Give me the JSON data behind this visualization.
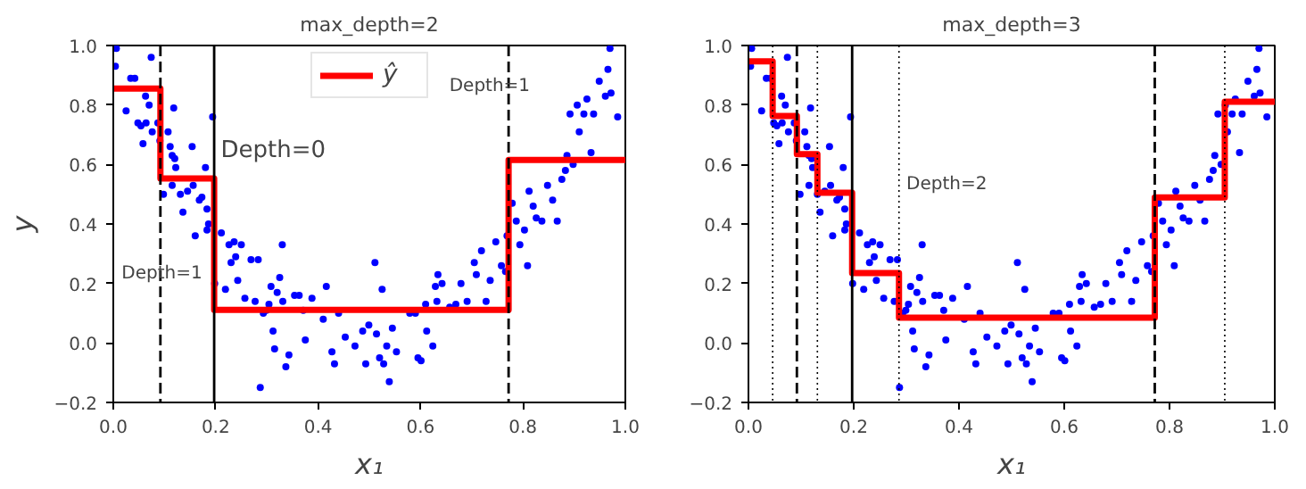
{
  "chart_data": [
    {
      "type": "scatter",
      "title": "max_depth=2",
      "xlabel": "x₁",
      "ylabel": "y",
      "xlim": [
        0,
        1
      ],
      "ylim": [
        -0.2,
        1.0
      ],
      "xticks": [
        {
          "value": 0,
          "label": "0.0"
        },
        {
          "value": 0.2,
          "label": "0.2"
        },
        {
          "value": 0.4,
          "label": "0.4"
        },
        {
          "value": 0.6,
          "label": "0.6"
        },
        {
          "value": 0.8,
          "label": "0.8"
        },
        {
          "value": 1,
          "label": "1.0"
        }
      ],
      "yticks": [
        {
          "value": -0.2,
          "label": "−0.2"
        },
        {
          "value": 0,
          "label": "0.0"
        },
        {
          "value": 0.2,
          "label": "0.2"
        },
        {
          "value": 0.4,
          "label": "0.4"
        },
        {
          "value": 0.6,
          "label": "0.6"
        },
        {
          "value": 0.8,
          "label": "0.8"
        },
        {
          "value": 1,
          "label": "1.0"
        }
      ],
      "grid": false,
      "legend": "top",
      "series": [
        {
          "marker": "circle",
          "color": "#0000ff",
          "x": [
            0.006,
            0.004,
            0.025,
            0.034,
            0.042,
            0.048,
            0.058,
            0.054,
            0.064,
            0.063,
            0.07,
            0.074,
            0.076,
            0.087,
            0.091,
            0.098,
            0.107,
            0.111,
            0.118,
            0.115,
            0.12,
            0.122,
            0.115,
            0.131,
            0.136,
            0.145,
            0.154,
            0.16,
            0.156,
            0.168,
            0.173,
            0.18,
            0.183,
            0.183,
            0.186,
            0.194,
            0.198,
            0.211,
            0.219,
            0.226,
            0.23,
            0.236,
            0.239,
            0.25,
            0.243,
            0.257,
            0.269,
            0.277,
            0.283,
            0.287,
            0.293,
            0.299,
            0.304,
            0.308,
            0.312,
            0.315,
            0.32,
            0.325,
            0.33,
            0.331,
            0.337,
            0.343,
            0.354,
            0.363,
            0.371,
            0.375,
            0.388,
            0.41,
            0.416,
            0.427,
            0.432,
            0.44,
            0.453,
            0.472,
            0.487,
            0.493,
            0.499,
            0.511,
            0.514,
            0.52,
            0.525,
            0.528,
            0.534,
            0.539,
            0.545,
            0.553,
            0.579,
            0.59,
            0.595,
            0.601,
            0.61,
            0.612,
            0.624,
            0.629,
            0.632,
            0.634,
            0.642,
            0.657,
            0.669,
            0.679,
            0.691,
            0.705,
            0.709,
            0.719,
            0.728,
            0.736,
            0.747,
            0.758,
            0.766,
            0.769,
            0.779,
            0.787,
            0.794,
            0.803,
            0.809,
            0.812,
            0.82,
            0.826,
            0.837,
            0.848,
            0.858,
            0.867,
            0.876,
            0.883,
            0.886,
            0.892,
            0.898,
            0.906,
            0.91,
            0.919,
            0.925,
            0.933,
            0.938,
            0.949,
            0.961,
            0.966,
            0.97,
            0.972,
            0.985
          ],
          "values": [
            0.99,
            0.93,
            0.78,
            0.89,
            0.89,
            0.74,
            0.67,
            0.73,
            0.74,
            0.83,
            0.8,
            0.96,
            0.71,
            0.74,
            0.68,
            0.5,
            0.71,
            0.66,
            0.79,
            0.63,
            0.62,
            0.59,
            0.53,
            0.5,
            0.44,
            0.51,
            0.66,
            0.36,
            0.53,
            0.48,
            0.49,
            0.59,
            0.45,
            0.38,
            0.4,
            0.76,
            0.2,
            0.37,
            0.18,
            0.33,
            0.27,
            0.34,
            0.29,
            0.33,
            0.21,
            0.15,
            0.28,
            0.14,
            0.28,
            -0.15,
            0.1,
            0.11,
            0.13,
            0.19,
            0.04,
            -0.02,
            0.17,
            0.22,
            0.33,
            0.14,
            -0.08,
            -0.04,
            0.16,
            0.16,
            0.11,
            0.01,
            0.15,
            0.08,
            0.19,
            -0.03,
            -0.07,
            0.1,
            0.02,
            -0.01,
            0.04,
            -0.07,
            0.06,
            0.27,
            0.03,
            -0.05,
            0.18,
            -0.07,
            -0.01,
            -0.13,
            0.05,
            -0.03,
            0.1,
            0.1,
            -0.05,
            -0.06,
            0.13,
            0.04,
            -0.01,
            0.19,
            0.14,
            0.23,
            0.2,
            0.12,
            0.13,
            0.2,
            0.14,
            0.27,
            0.23,
            0.31,
            0.14,
            0.21,
            0.34,
            0.26,
            0.24,
            0.36,
            0.47,
            0.41,
            0.33,
            0.38,
            0.26,
            0.51,
            0.46,
            0.42,
            0.41,
            0.53,
            0.48,
            0.41,
            0.55,
            0.58,
            0.63,
            0.77,
            0.6,
            0.8,
            0.71,
            0.77,
            0.82,
            0.64,
            0.77,
            0.88,
            0.83,
            0.92,
            0.99,
            0.84,
            0.76
          ]
        },
        {
          "type": "line",
          "name": "ŷ",
          "color": "#ff0000",
          "x": [
            0,
            0.092,
            0.092,
            0.197,
            0.197,
            0.772,
            0.772,
            1
          ],
          "values": [
            0.855,
            0.855,
            0.553,
            0.553,
            0.111,
            0.111,
            0.615,
            0.615
          ]
        }
      ],
      "ref_lines": [
        {
          "axis": "x",
          "value": 0.197,
          "line_style": "solid",
          "color": "#000000"
        },
        {
          "axis": "x",
          "value": 0.092,
          "line_style": "dashed",
          "color": "#000000"
        },
        {
          "axis": "x",
          "value": 0.772,
          "line_style": "dashed",
          "color": "#000000"
        }
      ],
      "annotations": [
        "Depth=0",
        "Depth=1",
        "Depth=1"
      ]
    },
    {
      "type": "scatter",
      "title": "max_depth=3",
      "xlabel": "x₁",
      "xlim": [
        0,
        1
      ],
      "ylim": [
        -0.2,
        1.0
      ],
      "xticks": [
        {
          "value": 0,
          "label": "0.0"
        },
        {
          "value": 0.2,
          "label": "0.2"
        },
        {
          "value": 0.4,
          "label": "0.4"
        },
        {
          "value": 0.6,
          "label": "0.6"
        },
        {
          "value": 0.8,
          "label": "0.8"
        },
        {
          "value": 1,
          "label": "1.0"
        }
      ],
      "yticks": [
        {
          "value": -0.2,
          "label": "−0.2"
        },
        {
          "value": 0,
          "label": "0.0"
        },
        {
          "value": 0.2,
          "label": "0.2"
        },
        {
          "value": 0.4,
          "label": "0.4"
        },
        {
          "value": 0.6,
          "label": "0.6"
        },
        {
          "value": 0.8,
          "label": "0.8"
        },
        {
          "value": 1,
          "label": "1.0"
        }
      ],
      "grid": false,
      "series": [
        {
          "marker": "circle",
          "color": "#0000ff",
          "x": [
            0.006,
            0.004,
            0.025,
            0.034,
            0.042,
            0.048,
            0.058,
            0.054,
            0.064,
            0.063,
            0.07,
            0.074,
            0.076,
            0.087,
            0.091,
            0.098,
            0.107,
            0.111,
            0.118,
            0.115,
            0.12,
            0.122,
            0.115,
            0.131,
            0.136,
            0.145,
            0.154,
            0.16,
            0.156,
            0.168,
            0.173,
            0.18,
            0.183,
            0.183,
            0.186,
            0.194,
            0.198,
            0.211,
            0.219,
            0.226,
            0.23,
            0.236,
            0.239,
            0.25,
            0.243,
            0.257,
            0.269,
            0.277,
            0.283,
            0.287,
            0.293,
            0.299,
            0.304,
            0.308,
            0.312,
            0.315,
            0.32,
            0.325,
            0.33,
            0.331,
            0.337,
            0.343,
            0.354,
            0.363,
            0.371,
            0.375,
            0.388,
            0.41,
            0.416,
            0.427,
            0.432,
            0.44,
            0.453,
            0.472,
            0.487,
            0.493,
            0.499,
            0.511,
            0.514,
            0.52,
            0.525,
            0.528,
            0.534,
            0.539,
            0.545,
            0.553,
            0.579,
            0.59,
            0.595,
            0.601,
            0.61,
            0.612,
            0.624,
            0.629,
            0.632,
            0.634,
            0.642,
            0.657,
            0.669,
            0.679,
            0.691,
            0.705,
            0.709,
            0.719,
            0.728,
            0.736,
            0.747,
            0.758,
            0.766,
            0.769,
            0.779,
            0.787,
            0.794,
            0.803,
            0.809,
            0.812,
            0.82,
            0.826,
            0.837,
            0.848,
            0.858,
            0.867,
            0.876,
            0.883,
            0.886,
            0.892,
            0.898,
            0.906,
            0.91,
            0.919,
            0.925,
            0.933,
            0.938,
            0.949,
            0.961,
            0.966,
            0.97,
            0.972,
            0.985
          ],
          "values": [
            0.99,
            0.93,
            0.78,
            0.89,
            0.89,
            0.74,
            0.67,
            0.73,
            0.74,
            0.83,
            0.8,
            0.96,
            0.71,
            0.74,
            0.68,
            0.5,
            0.71,
            0.66,
            0.79,
            0.63,
            0.62,
            0.59,
            0.53,
            0.5,
            0.44,
            0.51,
            0.66,
            0.36,
            0.53,
            0.48,
            0.49,
            0.59,
            0.45,
            0.38,
            0.4,
            0.76,
            0.2,
            0.37,
            0.18,
            0.33,
            0.27,
            0.34,
            0.29,
            0.33,
            0.21,
            0.15,
            0.28,
            0.14,
            0.28,
            -0.15,
            0.1,
            0.11,
            0.13,
            0.19,
            0.04,
            -0.02,
            0.17,
            0.22,
            0.33,
            0.14,
            -0.08,
            -0.04,
            0.16,
            0.16,
            0.11,
            0.01,
            0.15,
            0.08,
            0.19,
            -0.03,
            -0.07,
            0.1,
            0.02,
            -0.01,
            0.04,
            -0.07,
            0.06,
            0.27,
            0.03,
            -0.05,
            0.18,
            -0.07,
            -0.01,
            -0.13,
            0.05,
            -0.03,
            0.1,
            0.1,
            -0.05,
            -0.06,
            0.13,
            0.04,
            -0.01,
            0.19,
            0.14,
            0.23,
            0.2,
            0.12,
            0.13,
            0.2,
            0.14,
            0.27,
            0.23,
            0.31,
            0.14,
            0.21,
            0.34,
            0.26,
            0.24,
            0.36,
            0.47,
            0.41,
            0.33,
            0.38,
            0.26,
            0.51,
            0.46,
            0.42,
            0.41,
            0.53,
            0.48,
            0.41,
            0.55,
            0.58,
            0.63,
            0.77,
            0.6,
            0.8,
            0.71,
            0.77,
            0.82,
            0.64,
            0.77,
            0.88,
            0.83,
            0.92,
            0.99,
            0.84,
            0.76
          ]
        },
        {
          "type": "line",
          "color": "#ff0000",
          "x": [
            0,
            0.046,
            0.046,
            0.092,
            0.092,
            0.131,
            0.131,
            0.197,
            0.197,
            0.286,
            0.286,
            0.772,
            0.772,
            0.905,
            0.905,
            1
          ],
          "values": [
            0.947,
            0.947,
            0.763,
            0.763,
            0.635,
            0.635,
            0.505,
            0.505,
            0.235,
            0.235,
            0.085,
            0.085,
            0.489,
            0.489,
            0.811,
            0.811
          ]
        }
      ],
      "ref_lines": [
        {
          "axis": "x",
          "value": 0.197,
          "line_style": "solid",
          "color": "#000000"
        },
        {
          "axis": "x",
          "value": 0.092,
          "line_style": "dashed",
          "color": "#000000"
        },
        {
          "axis": "x",
          "value": 0.772,
          "line_style": "dashed",
          "color": "#000000"
        },
        {
          "axis": "x",
          "value": 0.046,
          "line_style": "dotted",
          "color": "#000000"
        },
        {
          "axis": "x",
          "value": 0.131,
          "line_style": "dotted",
          "color": "#000000"
        },
        {
          "axis": "x",
          "value": 0.286,
          "line_style": "dotted",
          "color": "#000000"
        },
        {
          "axis": "x",
          "value": 0.905,
          "line_style": "dotted",
          "color": "#000000"
        }
      ],
      "annotations": [
        "Depth=2"
      ]
    }
  ]
}
